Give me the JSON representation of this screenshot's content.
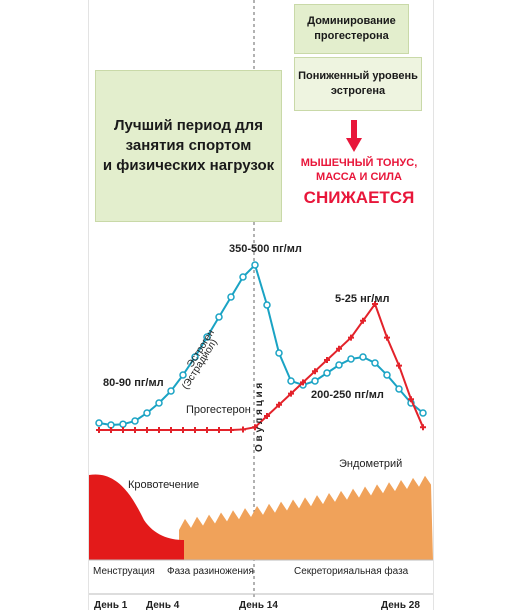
{
  "callouts": {
    "best_period": "Лучший период для\nзанятия спортом\nи физических нагрузок",
    "progesterone_dominance": "Доминирование\nпрогестерона",
    "estrogen_low": "Пониженный уровень\nэстрогена",
    "muscle_tone": "МЫШЕЧНЫЙ ТОНУС,\nМАССА И СИЛА",
    "decreases": "СНИЖАЕТСЯ"
  },
  "colors": {
    "estrogen": "#1aa3c4",
    "progesterone": "#e3222a",
    "bleeding": "#e31a1a",
    "endometrium": "#f0a25a",
    "callout_bg": "#e3eecd",
    "warning": "#e8163a"
  },
  "chart_data": {
    "type": "line",
    "x": [
      1,
      2,
      3,
      4,
      5,
      6,
      7,
      8,
      9,
      10,
      11,
      12,
      13,
      14,
      15,
      16,
      17,
      18,
      19,
      20,
      21,
      22,
      23,
      24,
      25,
      26,
      27,
      28
    ],
    "series": [
      {
        "name": "Эстроген (Эстрадиол)",
        "values": [
          85,
          80,
          82,
          90,
          110,
          135,
          165,
          205,
          250,
          300,
          350,
          400,
          450,
          480,
          380,
          260,
          190,
          180,
          190,
          210,
          230,
          245,
          250,
          235,
          205,
          170,
          135,
          110
        ]
      },
      {
        "name": "Прогестерон",
        "values": [
          0.5,
          0.5,
          0.5,
          0.5,
          0.5,
          0.5,
          0.5,
          0.5,
          0.5,
          0.5,
          0.5,
          0.5,
          0.6,
          1,
          3,
          5,
          7,
          9,
          11,
          13,
          15,
          17,
          20,
          23,
          17,
          12,
          6,
          1
        ]
      }
    ],
    "annotations": {
      "estrogen_low": "80-90 пг/мл",
      "estrogen_peak": "350-500 пг/мл",
      "progesterone_peak": "5-25 нг/мл",
      "estrogen_luteal": "200-250 пг/мл",
      "estrogen_label": "Эстроген",
      "estradiol_label": "(Эстрадиол)",
      "progesterone_label": "Прогестерон",
      "ovulation": "О в у л я ц и я",
      "bleeding": "Кровотечение",
      "endometrium": "Эндометрий"
    },
    "phases": [
      "Менструация",
      "Фаза разиножения",
      "Секреторияальная фаза"
    ],
    "day_ticks": [
      "День 1",
      "День 4",
      "День 14",
      "День 28"
    ],
    "ovulation_day": 14
  }
}
